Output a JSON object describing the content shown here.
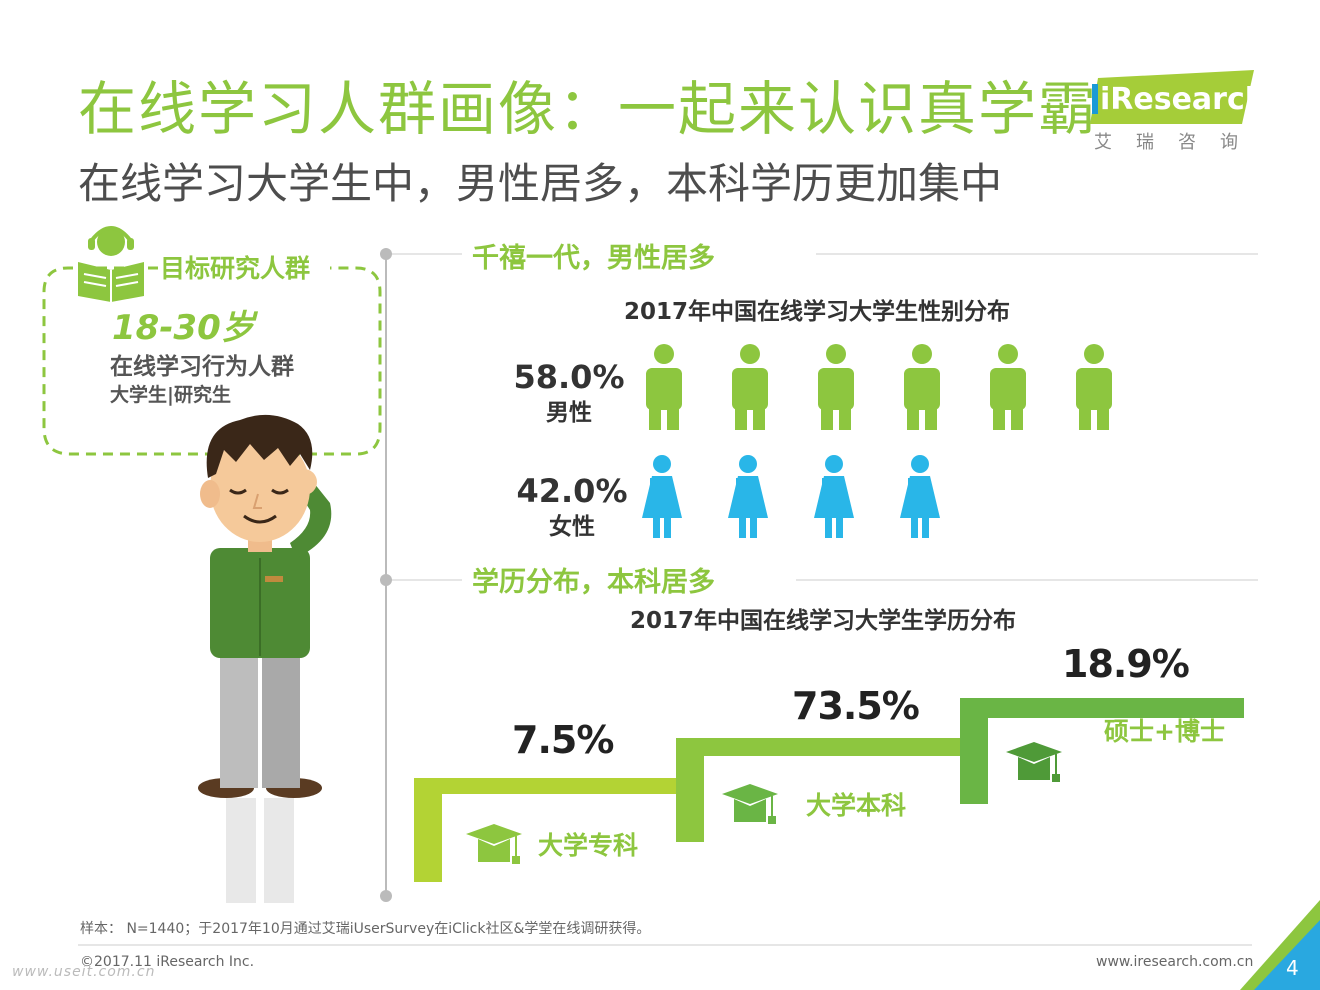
{
  "header": {
    "title": "在线学习人群画像：一起来认识真学霸",
    "subtitle": "在线学习大学生中，男性居多，本科学历更加集中",
    "logo_text": "iResearch",
    "logo_cn": "艾瑞咨询"
  },
  "target": {
    "title": "目标研究人群",
    "age": "18-30岁",
    "group": "在线学习行为人群",
    "group_sub": "大学生|研究生"
  },
  "chart_data": [
    {
      "type": "pictogram",
      "section_title": "千禧一代，男性居多",
      "title": "2017年中国在线学习大学生性别分布",
      "categories": [
        "男性",
        "女性"
      ],
      "values": [
        58.0,
        42.0
      ],
      "value_labels": [
        "58.0%",
        "42.0%"
      ],
      "icon_counts": [
        6,
        4
      ],
      "colors": [
        "#8dc63f",
        "#29b6e8"
      ]
    },
    {
      "type": "bar",
      "section_title": "学历分布，本科居多",
      "title": "2017年中国在线学习大学生学历分布",
      "categories": [
        "大学专科",
        "大学本科",
        "硕士+博士"
      ],
      "values": [
        7.5,
        73.5,
        18.9
      ],
      "value_labels": [
        "7.5%",
        "73.5%",
        "18.9%"
      ],
      "colors": [
        "#b3d334",
        "#8dc63f",
        "#6ab545"
      ]
    }
  ],
  "footer": {
    "sample": "样本： N=1440；于2017年10月通过艾瑞iUserSurvey在iClick社区&学堂在线调研获得。",
    "copyright": "©2017.11 iResearch Inc.",
    "website": "www.iresearch.com.cn",
    "page": "4",
    "watermark": "www.useit.com.cn"
  }
}
